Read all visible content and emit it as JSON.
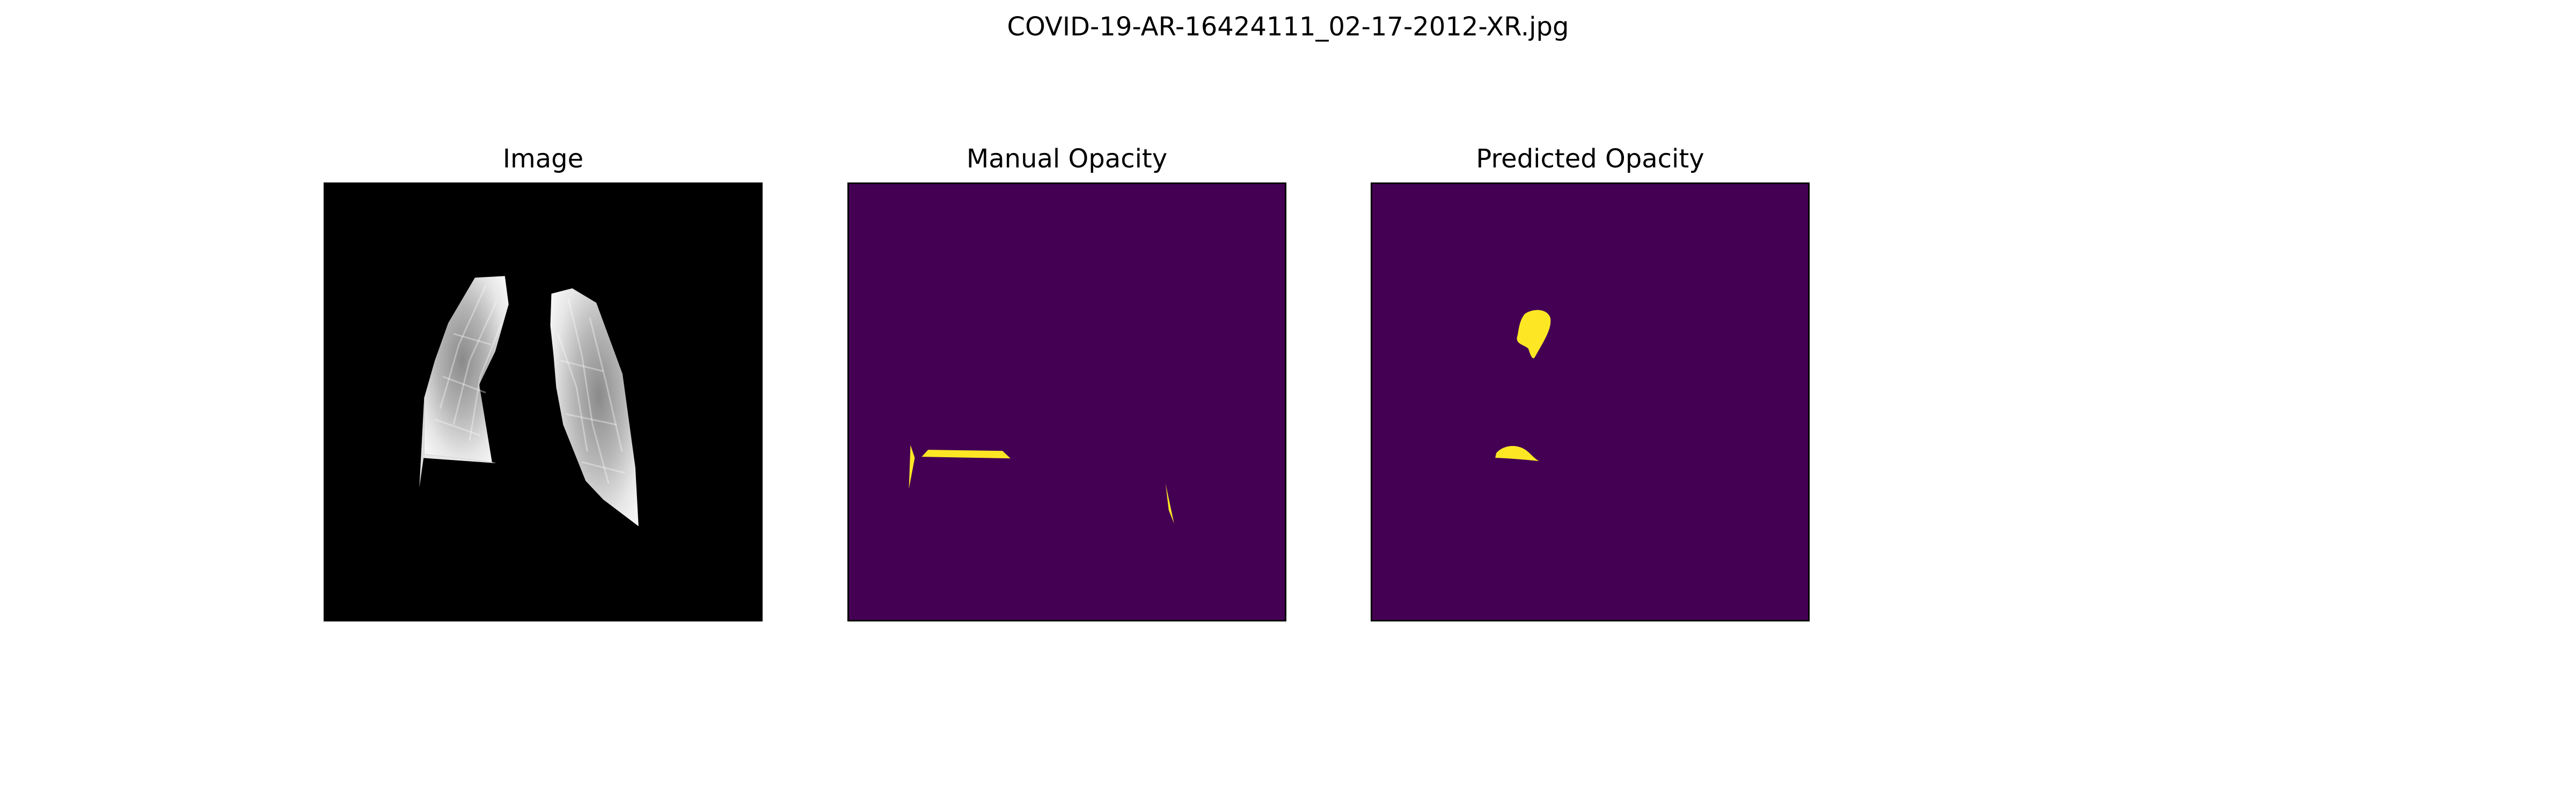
{
  "figure": {
    "title": "COVID-19-AR-16424111_02-17-2012-XR.jpg"
  },
  "panels": [
    {
      "title": "Image"
    },
    {
      "title": "Manual Opacity"
    },
    {
      "title": "Predicted Opacity"
    }
  ],
  "colors": {
    "image_background": "#000000",
    "mask_background": "#440154",
    "mask_foreground": "#fde725",
    "frame": "#000000"
  }
}
